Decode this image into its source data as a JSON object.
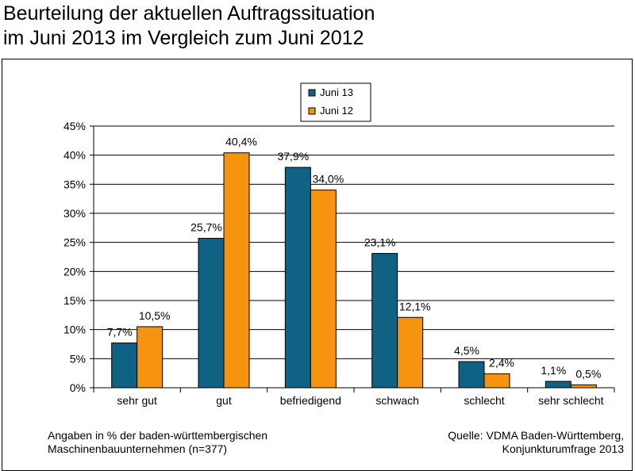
{
  "title": {
    "line1": "Beurteilung der aktuellen Auftragssituation",
    "line2": "im Juni 2013 im Vergleich zum Juni 2012"
  },
  "footnote": {
    "line1": "Angaben in % der baden-württembergischen",
    "line2": "Maschinenbauunternehmen (n=377)"
  },
  "source": {
    "line1": "Quelle: VDMA Baden-Württemberg,",
    "line2": "Konjunkturumfrage 2013"
  },
  "colors": {
    "juni13": "#0f6283",
    "juni12": "#f7940f"
  },
  "chart_data": {
    "type": "bar",
    "categories": [
      "sehr gut",
      "gut",
      "befriedigend",
      "schwach",
      "schlecht",
      "sehr schlecht"
    ],
    "series": [
      {
        "name": "Juni 13",
        "values": [
          7.7,
          25.7,
          37.9,
          23.1,
          4.5,
          1.1
        ],
        "labels": [
          "7,7%",
          "25,7%",
          "37,9%",
          "23,1%",
          "4,5%",
          "1,1%"
        ]
      },
      {
        "name": "Juni 12",
        "values": [
          10.5,
          40.4,
          34.0,
          12.1,
          2.4,
          0.5
        ],
        "labels": [
          "10,5%",
          "40,4%",
          "34,0%",
          "12,1%",
          "2,4%",
          "0,5%"
        ]
      }
    ],
    "ylim": [
      0,
      45
    ],
    "yticks": [
      0,
      5,
      10,
      15,
      20,
      25,
      30,
      35,
      40,
      45
    ],
    "ytick_labels": [
      "0%",
      "5%",
      "10%",
      "15%",
      "20%",
      "25%",
      "30%",
      "35%",
      "40%",
      "45%"
    ],
    "grid": true,
    "legend": "top-center"
  }
}
